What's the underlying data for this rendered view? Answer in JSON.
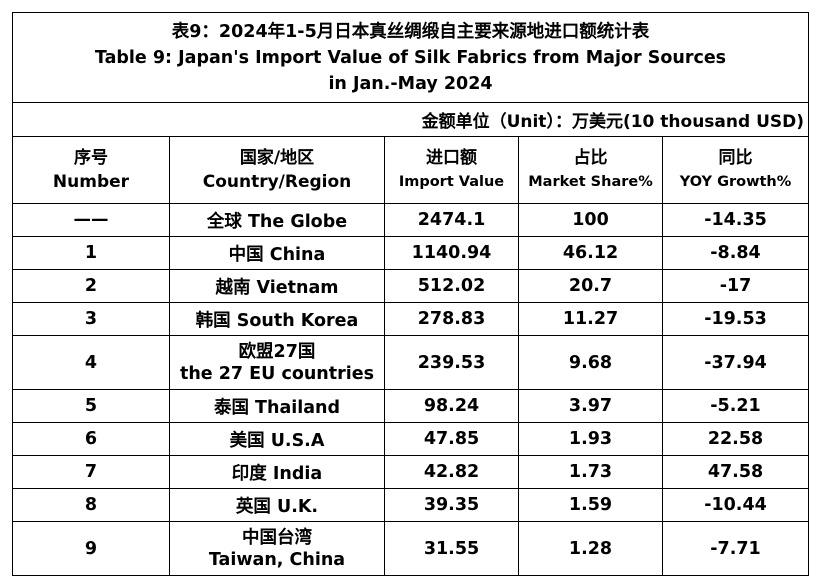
{
  "title": {
    "zh": "表9：2024年1-5月日本真丝绸缎自主要来源地进口额统计表",
    "en_line1": "Table 9: Japan's Import Value of Silk Fabrics from Major Sources",
    "en_line2": "in Jan.-May 2024"
  },
  "unit": "金额单位（Unit）：万美元(10 thousand USD)",
  "headers": [
    {
      "zh": "序号",
      "en": "Number"
    },
    {
      "zh": "国家/地区",
      "en": "Country/Region"
    },
    {
      "zh": "进口额",
      "en": "Import Value"
    },
    {
      "zh": "占比",
      "en": "Market Share%"
    },
    {
      "zh": "同比",
      "en": "YOY Growth%"
    }
  ],
  "rows": [
    {
      "num": "——",
      "country": [
        "全球 The Globe"
      ],
      "value": "2474.1",
      "share": "100",
      "yoy": "-14.35"
    },
    {
      "num": "1",
      "country": [
        "中国 China"
      ],
      "value": "1140.94",
      "share": "46.12",
      "yoy": "-8.84"
    },
    {
      "num": "2",
      "country": [
        "越南 Vietnam"
      ],
      "value": "512.02",
      "share": "20.7",
      "yoy": "-17"
    },
    {
      "num": "3",
      "country": [
        "韩国 South Korea"
      ],
      "value": "278.83",
      "share": "11.27",
      "yoy": "-19.53"
    },
    {
      "num": "4",
      "country": [
        "欧盟27国",
        "the 27 EU countries"
      ],
      "value": "239.53",
      "share": "9.68",
      "yoy": "-37.94"
    },
    {
      "num": "5",
      "country": [
        "泰国 Thailand"
      ],
      "value": "98.24",
      "share": "3.97",
      "yoy": "-5.21"
    },
    {
      "num": "6",
      "country": [
        "美国 U.S.A"
      ],
      "value": "47.85",
      "share": "1.93",
      "yoy": "22.58"
    },
    {
      "num": "7",
      "country": [
        "印度 India"
      ],
      "value": "42.82",
      "share": "1.73",
      "yoy": "47.58"
    },
    {
      "num": "8",
      "country": [
        "英国 U.K."
      ],
      "value": "39.35",
      "share": "1.59",
      "yoy": "-10.44"
    },
    {
      "num": "9",
      "country": [
        "中国台湾",
        "Taiwan, China"
      ],
      "value": "31.55",
      "share": "1.28",
      "yoy": "-7.71"
    }
  ]
}
